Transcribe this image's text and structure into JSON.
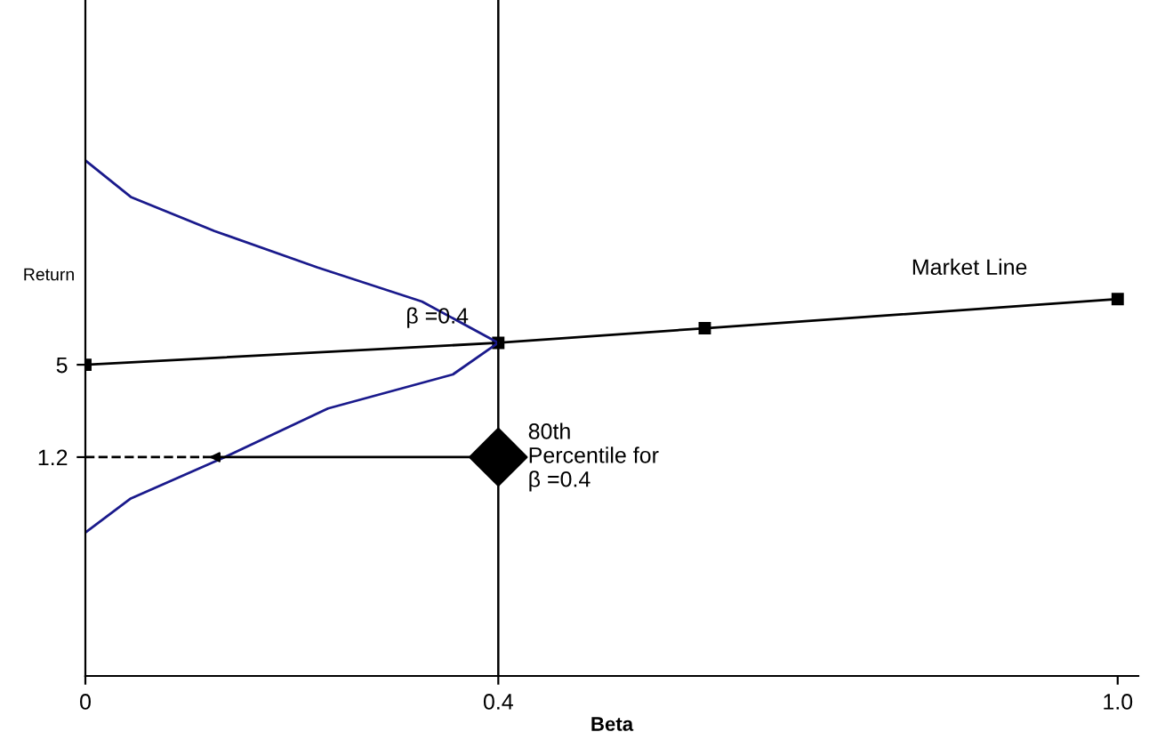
{
  "chart_data": {
    "type": "line",
    "xlabel": "Beta",
    "ylabel": "Return",
    "xlim": [
      0,
      1.02
    ],
    "ylim": [
      -7.8,
      20
    ],
    "xticks": [
      0,
      0.4,
      {
        "value": 1,
        "label": "1.0"
      }
    ],
    "yticks": [
      1.2,
      5
    ],
    "grid": false,
    "legend": false,
    "series": [
      {
        "name": "Market Line",
        "color": "#000000",
        "marker": "square",
        "line_style": "solid",
        "x": [
          0,
          0.4,
          0.6,
          1.0
        ],
        "values": [
          5,
          5.9,
          6.5,
          7.7
        ]
      },
      {
        "color": "#1a1a8c",
        "marker": "none",
        "line_style": "solid",
        "x": [
          0,
          0.044,
          0.125,
          0.225,
          0.326,
          0.4,
          0.356,
          0.235,
          0.135,
          0.044,
          0
        ],
        "values": [
          13.4,
          11.9,
          10.5,
          9.0,
          7.6,
          5.9,
          4.6,
          3.2,
          1.2,
          -0.5,
          -1.9
        ]
      },
      {
        "color": "#000000",
        "marker": "none",
        "line_style": "dashed",
        "x": [
          0,
          0.115
        ],
        "values": [
          1.2,
          1.2
        ]
      },
      {
        "color": "#000000",
        "marker": "none",
        "line_style": "solid",
        "x": [
          0.38,
          0.115
        ],
        "values": [
          1.2,
          1.2
        ]
      },
      {
        "type": "scatter",
        "color": "#000000",
        "marker": "diamond",
        "x": [
          0.4
        ],
        "values": [
          1.2
        ]
      }
    ],
    "ref_lines": [
      {
        "axis": "x",
        "value": 0.4,
        "color": "#000000",
        "line_style": "solid"
      }
    ],
    "annotations": [
      {
        "text": "β =0.4",
        "x": 0.4,
        "y": 5.9
      },
      {
        "text": "80th\nPercentile for\nβ =0.4",
        "x": 0.4,
        "y": 1.2
      }
    ]
  }
}
